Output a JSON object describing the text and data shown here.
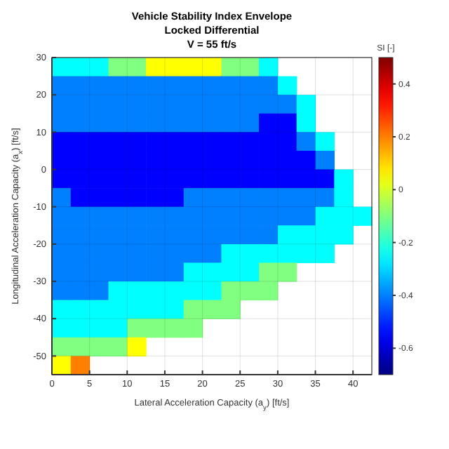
{
  "chart_data": {
    "type": "heatmap",
    "title": "Vehicle Stability Index Envelope\nLocked Differential\nV = 55 ft/s",
    "xlabel": "Lateral Acceleration Capacity (a$_{y}$) [ft/s]",
    "ylabel": "Longitudinal Acceleration Capacity (a$_{x}$) [ft/s]",
    "clabel": "SI [-]",
    "x": [
      1.25,
      3.75,
      6.25,
      8.75,
      11.25,
      13.75,
      16.25,
      18.75,
      21.25,
      23.75,
      26.25,
      28.75,
      31.25,
      33.75,
      36.25,
      38.75,
      41.25
    ],
    "xlim": [
      0,
      42.5
    ],
    "ylim": [
      -55,
      30
    ],
    "xticks": [
      0,
      5,
      10,
      15,
      20,
      25,
      30,
      35,
      40
    ],
    "yticks": [
      -50,
      -40,
      -30,
      -20,
      -10,
      0,
      10,
      20,
      30
    ],
    "clim": [
      -0.7,
      0.5
    ],
    "cticks": [
      -0.6,
      -0.4,
      -0.2,
      0,
      0.2,
      0.4
    ],
    "grid": true,
    "cells": [
      [
        -0.25,
        -0.25,
        -0.25,
        -0.1,
        -0.1,
        0.05,
        0.05,
        0.05,
        0.05,
        -0.1,
        -0.1,
        -0.25,
        null,
        null,
        null,
        null,
        null
      ],
      [
        -0.4,
        -0.4,
        -0.4,
        -0.4,
        -0.4,
        -0.4,
        -0.4,
        -0.4,
        -0.4,
        -0.4,
        -0.4,
        -0.4,
        -0.25,
        null,
        null,
        null,
        null
      ],
      [
        -0.4,
        -0.4,
        -0.4,
        -0.4,
        -0.4,
        -0.4,
        -0.4,
        -0.4,
        -0.4,
        -0.4,
        -0.4,
        -0.4,
        -0.4,
        -0.25,
        null,
        null,
        null
      ],
      [
        -0.4,
        -0.4,
        -0.4,
        -0.4,
        -0.4,
        -0.4,
        -0.4,
        -0.4,
        -0.4,
        -0.4,
        -0.4,
        -0.55,
        -0.55,
        -0.25,
        null,
        null,
        null
      ],
      [
        -0.55,
        -0.55,
        -0.55,
        -0.55,
        -0.55,
        -0.55,
        -0.55,
        -0.55,
        -0.55,
        -0.55,
        -0.55,
        -0.55,
        -0.55,
        -0.4,
        -0.25,
        null,
        null
      ],
      [
        -0.55,
        -0.55,
        -0.55,
        -0.55,
        -0.55,
        -0.55,
        -0.55,
        -0.55,
        -0.55,
        -0.55,
        -0.55,
        -0.55,
        -0.55,
        -0.55,
        -0.4,
        null,
        null
      ],
      [
        -0.55,
        -0.55,
        -0.55,
        -0.55,
        -0.55,
        -0.55,
        -0.55,
        -0.55,
        -0.55,
        -0.55,
        -0.55,
        -0.55,
        -0.55,
        -0.55,
        -0.55,
        -0.25,
        null
      ],
      [
        -0.4,
        -0.55,
        -0.55,
        -0.55,
        -0.55,
        -0.55,
        -0.55,
        -0.4,
        -0.4,
        -0.4,
        -0.4,
        -0.4,
        -0.4,
        -0.4,
        -0.4,
        -0.25,
        null
      ],
      [
        -0.4,
        -0.4,
        -0.4,
        -0.4,
        -0.4,
        -0.4,
        -0.4,
        -0.4,
        -0.4,
        -0.4,
        -0.4,
        -0.4,
        -0.4,
        -0.4,
        -0.25,
        -0.25,
        -0.25
      ],
      [
        -0.4,
        -0.4,
        -0.4,
        -0.4,
        -0.4,
        -0.4,
        -0.4,
        -0.4,
        -0.4,
        -0.4,
        -0.4,
        -0.4,
        -0.25,
        -0.25,
        -0.25,
        -0.25,
        null
      ],
      [
        -0.4,
        -0.4,
        -0.4,
        -0.4,
        -0.4,
        -0.4,
        -0.4,
        -0.4,
        -0.4,
        -0.25,
        -0.25,
        -0.25,
        -0.25,
        -0.25,
        -0.25,
        null,
        null
      ],
      [
        -0.4,
        -0.4,
        -0.4,
        -0.4,
        -0.4,
        -0.4,
        -0.4,
        -0.25,
        -0.25,
        -0.25,
        -0.25,
        -0.1,
        -0.1,
        null,
        null,
        null,
        null
      ],
      [
        -0.4,
        -0.4,
        -0.4,
        -0.25,
        -0.25,
        -0.25,
        -0.25,
        -0.25,
        -0.25,
        -0.1,
        -0.1,
        -0.1,
        null,
        null,
        null,
        null,
        null
      ],
      [
        -0.25,
        -0.25,
        -0.25,
        -0.25,
        -0.25,
        -0.25,
        -0.25,
        -0.1,
        -0.1,
        -0.1,
        null,
        null,
        null,
        null,
        null,
        null,
        null
      ],
      [
        -0.25,
        -0.25,
        -0.25,
        -0.25,
        -0.1,
        -0.1,
        -0.1,
        -0.1,
        null,
        null,
        null,
        null,
        null,
        null,
        null,
        null,
        null
      ],
      [
        -0.1,
        -0.1,
        -0.1,
        -0.1,
        0.05,
        null,
        null,
        null,
        null,
        null,
        null,
        null,
        null,
        null,
        null,
        null,
        null
      ],
      [
        0.05,
        0.2,
        null,
        null,
        null,
        null,
        null,
        null,
        null,
        null,
        null,
        null,
        null,
        null,
        null,
        null,
        null
      ]
    ]
  }
}
